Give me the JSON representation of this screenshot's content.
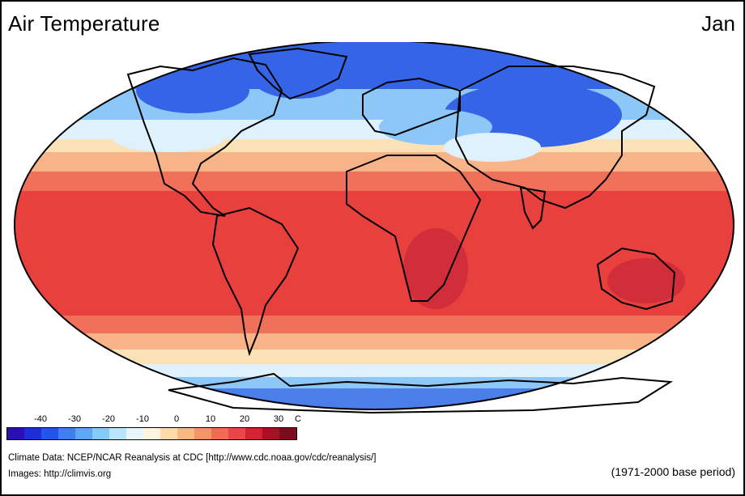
{
  "title": "Air Temperature",
  "month": "Jan",
  "legend": {
    "unit": "C",
    "ticks": [
      "-40",
      "-30",
      "-20",
      "-10",
      "0",
      "10",
      "20",
      "30"
    ],
    "colors": [
      "#2b0fb0",
      "#1c2fd0",
      "#2257e3",
      "#3f7ff0",
      "#5ea6f8",
      "#86c9fb",
      "#b7e6fc",
      "#e6f6ff",
      "#fff5dc",
      "#fcdca8",
      "#f9b984",
      "#f59466",
      "#ef6c52",
      "#e54848",
      "#cf2533",
      "#a51125",
      "#7c0b1d"
    ]
  },
  "credits": {
    "line1": "Climate Data:  NCEP/NCAR Reanalysis at CDC [http://www.cdc.noaa.gov/cdc/reanalysis/]",
    "line2": "Images:  http://climvis.org"
  },
  "base_period": "(1971-2000 base period)",
  "map_colors": {
    "arctic": "#3565e6",
    "subarctic": "#8cc7f7",
    "cold": "#dff1fd",
    "cool": "#fbe2b6",
    "mild": "#f7b489",
    "warm": "#f0705a",
    "hot": "#e8413d",
    "hottest": "#d22d3b",
    "antarctic": "#4a7fe9",
    "outline": "#000000"
  }
}
